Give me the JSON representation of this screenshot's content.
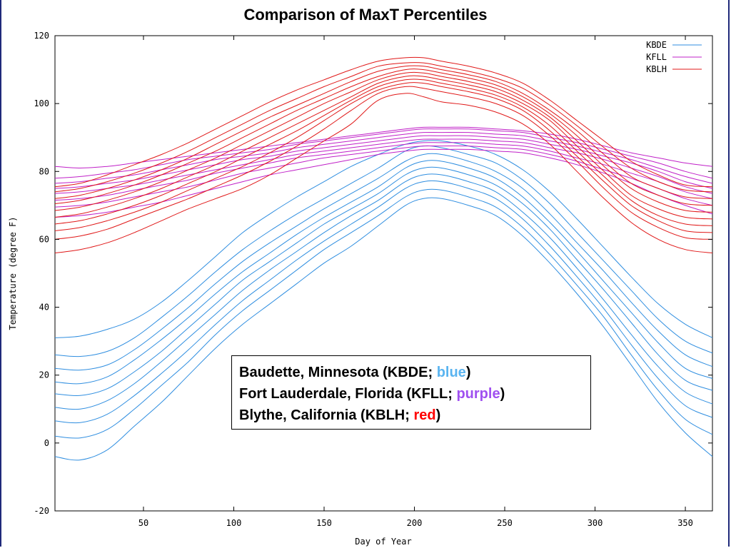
{
  "chart_data": {
    "type": "line",
    "title": "Comparison of MaxT Percentiles",
    "xlabel": "Day of Year",
    "ylabel": "Temperature (degree F)",
    "xlim": [
      1,
      365
    ],
    "ylim": [
      -20,
      120
    ],
    "xticks": [
      50,
      100,
      150,
      200,
      250,
      300,
      350
    ],
    "yticks": [
      -20,
      0,
      20,
      40,
      60,
      80,
      100,
      120
    ],
    "grid": false,
    "legend_position": "top-right",
    "legend": [
      {
        "name": "KBDE",
        "color": "#2f8ee0"
      },
      {
        "name": "KFLL",
        "color": "#c020c8"
      },
      {
        "name": "KBLH",
        "color": "#e01818"
      }
    ],
    "x": [
      1,
      15,
      30,
      45,
      60,
      75,
      90,
      105,
      120,
      135,
      150,
      165,
      180,
      195,
      205,
      215,
      230,
      245,
      260,
      275,
      290,
      305,
      320,
      335,
      350,
      365
    ],
    "series": [
      {
        "station": "KBDE",
        "color": "#2f8ee0",
        "values": [
          -4,
          -5,
          -2,
          5,
          12,
          20,
          28,
          35,
          41,
          47,
          53,
          58,
          64,
          70,
          72,
          72,
          70,
          67,
          61,
          53,
          44,
          34,
          23,
          12,
          3,
          -4
        ]
      },
      {
        "station": "KBDE",
        "color": "#2f8ee0",
        "values": [
          2,
          1.5,
          4,
          10,
          17,
          24,
          32,
          39,
          45,
          51,
          57,
          62,
          67,
          72.5,
          74.5,
          74.5,
          72.5,
          69.5,
          63.5,
          55.5,
          46.5,
          37,
          26,
          15.5,
          7,
          2.5
        ]
      },
      {
        "station": "KBDE",
        "color": "#2f8ee0",
        "values": [
          6.5,
          6,
          8.5,
          14,
          20.5,
          27.5,
          35,
          42,
          48,
          54,
          59.5,
          64.5,
          69.5,
          75,
          77,
          77,
          75,
          72,
          66,
          58,
          49,
          39.5,
          29,
          19,
          11,
          7.5
        ]
      },
      {
        "station": "KBDE",
        "color": "#2f8ee0",
        "values": [
          10.5,
          10,
          12.5,
          17.5,
          24,
          31,
          38,
          45,
          51,
          56.5,
          62,
          67,
          71.5,
          77,
          79,
          79,
          77,
          74,
          68,
          60.5,
          51.5,
          42,
          32,
          22.5,
          15,
          11.5
        ]
      },
      {
        "station": "KBDE",
        "color": "#2f8ee0",
        "values": [
          14.5,
          14,
          16,
          21,
          27,
          34,
          41,
          48,
          53.5,
          59,
          64.5,
          69,
          73.5,
          79,
          81,
          81,
          79,
          76,
          70.5,
          63,
          54,
          45,
          35.5,
          26,
          18.5,
          15.5
        ]
      },
      {
        "station": "KBDE",
        "color": "#2f8ee0",
        "values": [
          18,
          17.5,
          19.5,
          24.5,
          30.5,
          37,
          44,
          50.5,
          56,
          61.5,
          66.5,
          71,
          75.5,
          81,
          83,
          83,
          81,
          78,
          72.5,
          65,
          56.5,
          47.5,
          38.5,
          29.5,
          22,
          19
        ]
      },
      {
        "station": "KBDE",
        "color": "#2f8ee0",
        "values": [
          22,
          21.5,
          23,
          27.5,
          33.5,
          40,
          47,
          53.5,
          59,
          64,
          69,
          73.5,
          78,
          83,
          85,
          85,
          83,
          80,
          75,
          67.5,
          59,
          50.5,
          41.5,
          33,
          26,
          22.5
        ]
      },
      {
        "station": "KBDE",
        "color": "#2f8ee0",
        "values": [
          26,
          25.5,
          27,
          31,
          37,
          43.5,
          50.5,
          57,
          62.5,
          67.5,
          72,
          76.5,
          81,
          86,
          87.5,
          87,
          85,
          82.5,
          77.5,
          70.5,
          62,
          53.5,
          45,
          36.5,
          30,
          26.5
        ]
      },
      {
        "station": "KBDE",
        "color": "#2f8ee0",
        "values": [
          31,
          31.5,
          33.5,
          36.5,
          41.5,
          48,
          55,
          62,
          67.5,
          72.5,
          77,
          81.5,
          85,
          88,
          89,
          89,
          87.5,
          85,
          80.5,
          74,
          66,
          57.5,
          49,
          41,
          35,
          31
        ]
      },
      {
        "station": "KFLL",
        "color": "#c020c8",
        "values": [
          66.5,
          67,
          68,
          69.5,
          71,
          73,
          75,
          77,
          79,
          80.5,
          82,
          83.5,
          85,
          86,
          86.5,
          86.5,
          86.5,
          86,
          85.5,
          84,
          82,
          79.5,
          76.5,
          73,
          70,
          67.5
        ]
      },
      {
        "station": "KFLL",
        "color": "#c020c8",
        "values": [
          69.5,
          70,
          71,
          72.5,
          74,
          75.5,
          77.5,
          79.5,
          81,
          82.5,
          84,
          85,
          86,
          87,
          87.5,
          87.5,
          87.5,
          87,
          86.5,
          85,
          83,
          80.5,
          78,
          75,
          72,
          70
        ]
      },
      {
        "station": "KFLL",
        "color": "#c020c8",
        "values": [
          71.5,
          72,
          73,
          74.5,
          76,
          77.5,
          79.5,
          81,
          82.5,
          84,
          85,
          86,
          87,
          88,
          88.5,
          88.5,
          88.5,
          88,
          87.5,
          86,
          84,
          82,
          79.5,
          77,
          74,
          72
        ]
      },
      {
        "station": "KFLL",
        "color": "#c020c8",
        "values": [
          73.5,
          74,
          75,
          76,
          77.5,
          79,
          80.5,
          82,
          83.5,
          85,
          86,
          87,
          88,
          89,
          89.5,
          89.5,
          89.5,
          89,
          88.5,
          87,
          85.5,
          83.5,
          81,
          78.5,
          75.5,
          73.5
        ]
      },
      {
        "station": "KFLL",
        "color": "#c020c8",
        "values": [
          75,
          75.5,
          76.5,
          77.5,
          79,
          80.5,
          82,
          83.5,
          84.5,
          86,
          87,
          88,
          89,
          90,
          90.5,
          90.5,
          90.5,
          90,
          89.5,
          88,
          86.5,
          84.5,
          82.5,
          80,
          77,
          75
        ]
      },
      {
        "station": "KFLL",
        "color": "#c020c8",
        "values": [
          76.5,
          77,
          78,
          79,
          80.5,
          82,
          83.5,
          84.5,
          85.5,
          87,
          88,
          89,
          90,
          91,
          91.5,
          91.5,
          91.5,
          91,
          90.5,
          89,
          87.5,
          85.5,
          83.5,
          81,
          78.5,
          76.5
        ]
      },
      {
        "station": "KFLL",
        "color": "#c020c8",
        "values": [
          78,
          78.5,
          79.5,
          80.5,
          82,
          83.5,
          84.5,
          85.5,
          86.5,
          88,
          89,
          90,
          91,
          92,
          92.5,
          92.5,
          92.5,
          92,
          91.5,
          90,
          88.5,
          86.5,
          84.5,
          82.5,
          80,
          78
        ]
      },
      {
        "station": "KFLL",
        "color": "#c020c8",
        "values": [
          81.5,
          81,
          81.5,
          82.5,
          83.5,
          84.5,
          85.5,
          86.5,
          87.5,
          88.5,
          89.5,
          90.5,
          91.5,
          92.5,
          93,
          93,
          93,
          92.5,
          92,
          91,
          89.5,
          87.5,
          85.5,
          84,
          82.5,
          81.5
        ]
      },
      {
        "station": "KBLH",
        "color": "#e01818",
        "values": [
          56,
          57,
          59,
          62,
          65.5,
          69,
          72,
          75,
          79,
          84,
          89,
          94,
          101,
          103,
          102,
          100.5,
          99.5,
          97.5,
          94,
          88,
          80,
          72,
          65,
          60,
          57,
          56
        ]
      },
      {
        "station": "KBLH",
        "color": "#e01818",
        "values": [
          60,
          61,
          63,
          66,
          69,
          72,
          75.5,
          79,
          83,
          87.5,
          92.5,
          98,
          103,
          105,
          104.5,
          103.5,
          102,
          100,
          96.5,
          90.5,
          83,
          75,
          68,
          63.5,
          60.5,
          60
        ]
      },
      {
        "station": "KBLH",
        "color": "#e01818",
        "values": [
          62.5,
          63.5,
          65.5,
          68,
          71,
          74.5,
          78,
          81.5,
          85.5,
          90,
          95,
          100,
          104,
          106,
          106,
          105,
          103.5,
          101.5,
          98,
          92,
          84.5,
          77,
          70,
          65.5,
          62.5,
          62
        ]
      },
      {
        "station": "KBLH",
        "color": "#e01818",
        "values": [
          64.5,
          65.5,
          67.5,
          70,
          73,
          76.5,
          80,
          84,
          88,
          92,
          96.5,
          101,
          105,
          107,
          107,
          106,
          104.5,
          102.5,
          99,
          93.5,
          86,
          78.5,
          71.5,
          67,
          64.5,
          64
        ]
      },
      {
        "station": "KBLH",
        "color": "#e01818",
        "values": [
          66.5,
          67.5,
          69.5,
          72,
          75,
          78.5,
          82,
          86,
          90,
          94,
          98,
          102,
          106,
          108,
          108,
          107,
          105.5,
          103.5,
          100,
          95,
          87.5,
          80,
          73,
          69,
          66.5,
          66
        ]
      },
      {
        "station": "KBLH",
        "color": "#e01818",
        "values": [
          68.5,
          69.5,
          71.5,
          74,
          77,
          80.5,
          84,
          88,
          92,
          96,
          100,
          103.5,
          107,
          109,
          109,
          108,
          106.5,
          104.5,
          101,
          96,
          89,
          81.5,
          75,
          71,
          68.5,
          68
        ]
      },
      {
        "station": "KBLH",
        "color": "#e01818",
        "values": [
          70.5,
          71.5,
          73.5,
          76,
          79,
          82.5,
          86,
          90,
          94,
          98,
          101.5,
          105,
          108,
          110,
          110,
          109,
          107.5,
          105.5,
          102,
          97,
          90.5,
          83,
          76.5,
          73,
          70.5,
          70
        ]
      },
      {
        "station": "KBLH",
        "color": "#e01818",
        "values": [
          72,
          73,
          75,
          77.5,
          80.5,
          84,
          88,
          92,
          96,
          99.5,
          103,
          106.5,
          109.5,
          111,
          111,
          110,
          108.5,
          106.5,
          103,
          98,
          92,
          85,
          78.5,
          75,
          72.5,
          72
        ]
      },
      {
        "station": "KBLH",
        "color": "#e01818",
        "values": [
          74,
          75,
          77,
          79.5,
          82.5,
          86,
          90,
          94,
          98,
          101.5,
          105,
          108,
          111,
          112,
          112,
          111,
          109.5,
          107.5,
          104.5,
          99.5,
          93.5,
          87,
          81,
          77,
          74.5,
          74
        ]
      },
      {
        "station": "KBLH",
        "color": "#e01818",
        "values": [
          75.5,
          76.5,
          79,
          82,
          85,
          88.5,
          92.5,
          96.5,
          100.5,
          104,
          107,
          110,
          112.5,
          113.5,
          113.5,
          112.5,
          111,
          109,
          106,
          101,
          95,
          89,
          83,
          79,
          76,
          75.5
        ]
      }
    ]
  },
  "station_box": {
    "line1_text": "Baudette, Minnesota (KBDE; ",
    "line1_color_word": "blue",
    "line1_color": "#5ab4f0",
    "line2_text": "Fort Lauderdale, Florida (KFLL; ",
    "line2_color_word": "purple",
    "line2_color": "#a050f0",
    "line3_text": "Blythe, California (KBLH; ",
    "line3_color_word": "red",
    "line3_color": "#ff0000",
    "close_paren": ")"
  }
}
